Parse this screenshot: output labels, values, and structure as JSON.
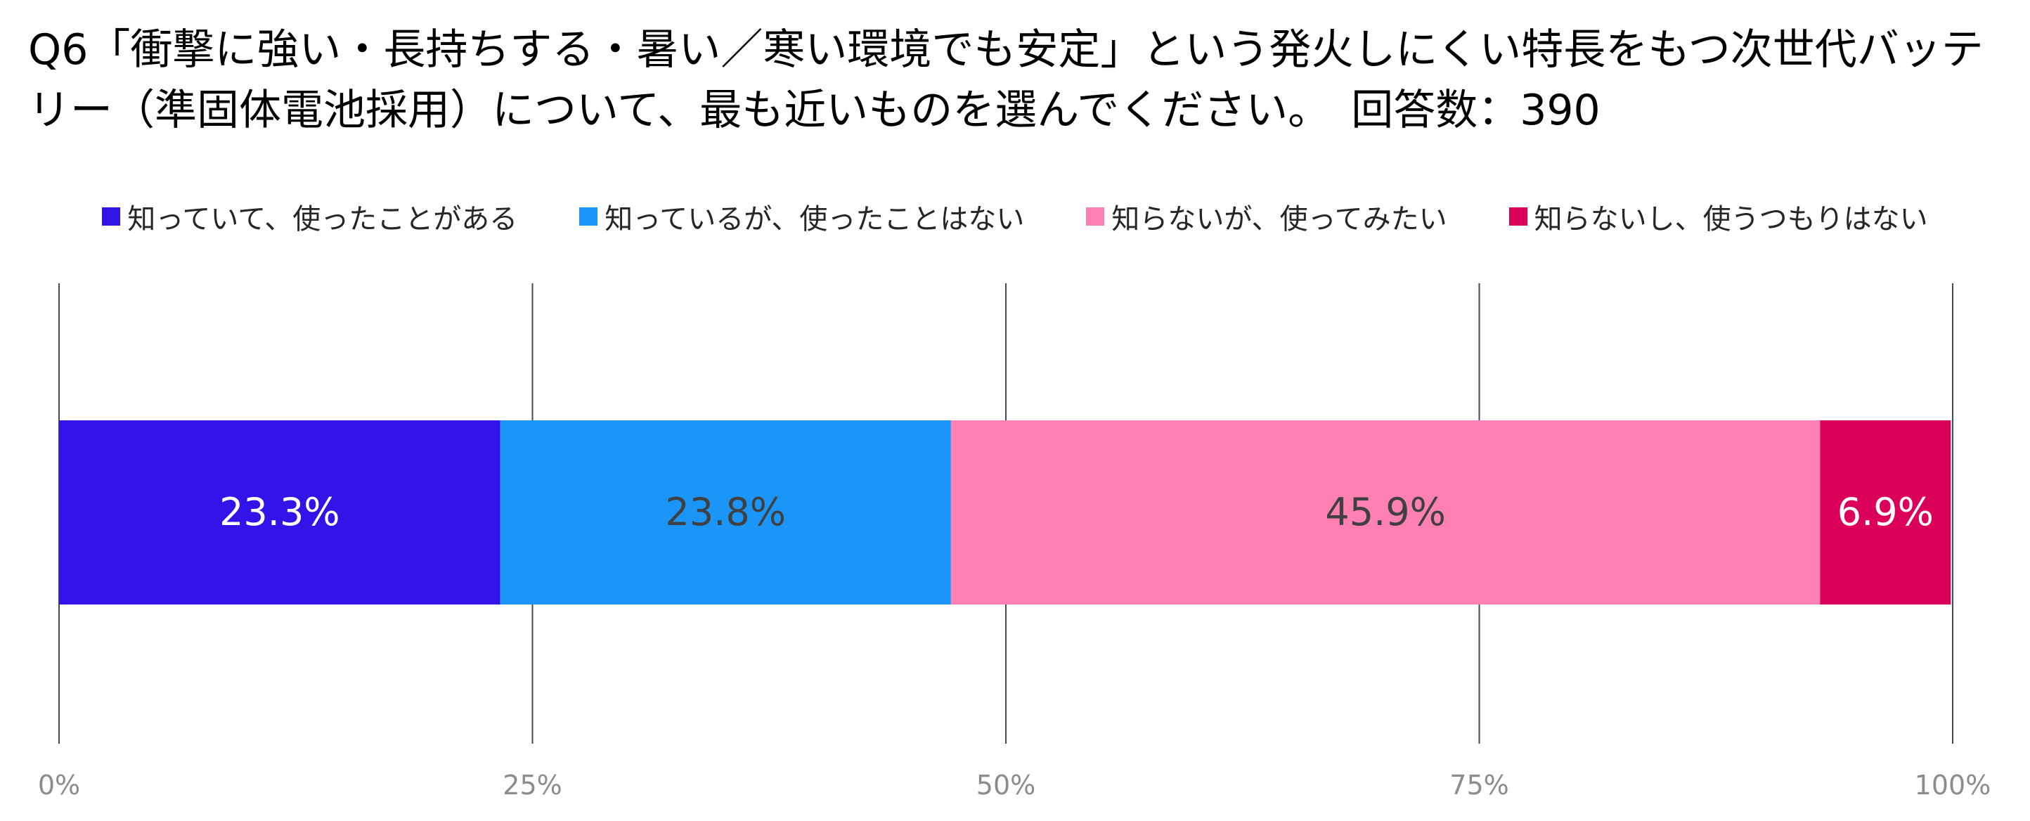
{
  "question": "Q6「衝撃に強い・長持ちする・暑い／寒い環境でも安定」という発火しにくい特長をもつ次世代バッテリー（準固体電池採用）について、最も近いものを選んでください。　回答数：390",
  "chart_data": {
    "type": "bar",
    "orientation": "horizontal",
    "stacked": true,
    "normalized": true,
    "categories": [
      ""
    ],
    "series": [
      {
        "name": "知っていて、使ったことがある",
        "values": [
          23.3
        ],
        "label": "23.3%",
        "color": "#3213E8",
        "label_color": "#FFFFFF"
      },
      {
        "name": "知っているが、使ったことはない",
        "values": [
          23.8
        ],
        "label": "23.8%",
        "color": "#1B96F8",
        "label_color": "#404040"
      },
      {
        "name": "知らないが、使ってみたい",
        "values": [
          45.9
        ],
        "label": "45.9%",
        "color": "#FF80B2",
        "label_color": "#404040"
      },
      {
        "name": "知らないし、使うつもりはない",
        "values": [
          6.9
        ],
        "label": "6.9%",
        "color": "#DB005A",
        "label_color": "#FFFFFF"
      }
    ],
    "xlim": [
      0,
      100
    ],
    "xticks": [
      0,
      25,
      50,
      75,
      100
    ],
    "xtick_labels": [
      "0%",
      "25%",
      "50%",
      "75%",
      "100%"
    ],
    "legend_position": "top",
    "grid": true
  }
}
